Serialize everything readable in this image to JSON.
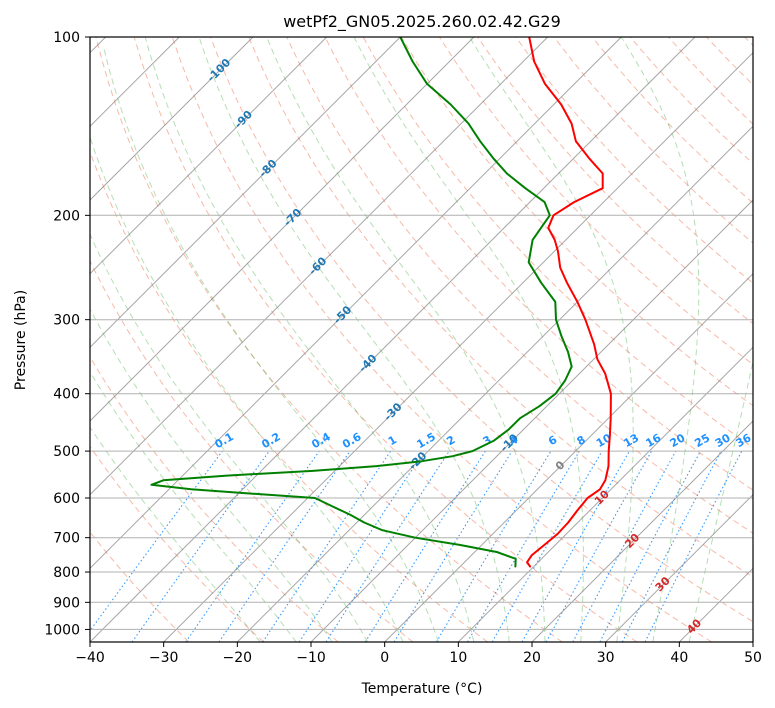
{
  "chart_data": {
    "type": "line",
    "subtype": "skew-t log-p diagram",
    "title": "wetPf2_GN05.2025.260.02.42.G29",
    "xlabel": "Temperature (°C)",
    "ylabel": "Pressure (hPa)",
    "xlim": [
      -40,
      50
    ],
    "ylim": [
      1050,
      100
    ],
    "y_scale": "log",
    "skew_deg": 45,
    "grid": true,
    "x_ticks": [
      -40,
      -30,
      -20,
      -10,
      0,
      10,
      20,
      30,
      40,
      50
    ],
    "x_tick_labels": [
      "−40",
      "−30",
      "−20",
      "−10",
      "0",
      "10",
      "20",
      "30",
      "40",
      "50"
    ],
    "y_ticks": [
      100,
      200,
      300,
      400,
      500,
      600,
      700,
      800,
      900,
      1000
    ],
    "y_tick_labels": [
      "100",
      "200",
      "300",
      "400",
      "500",
      "600",
      "700",
      "800",
      "900",
      "1000"
    ],
    "series": [
      {
        "role": "temperature",
        "color": "#ff0000",
        "points": [
          [
            783,
            9.5
          ],
          [
            770,
            8.5
          ],
          [
            750,
            8.2
          ],
          [
            720,
            8.5
          ],
          [
            690,
            8.8
          ],
          [
            660,
            8.7
          ],
          [
            630,
            8.3
          ],
          [
            600,
            8.0
          ],
          [
            580,
            8.5
          ],
          [
            560,
            8.0
          ],
          [
            530,
            6.5
          ],
          [
            500,
            4.5
          ],
          [
            470,
            2.5
          ],
          [
            440,
            0.3
          ],
          [
            400,
            -3.0
          ],
          [
            370,
            -6.5
          ],
          [
            350,
            -9.5
          ],
          [
            330,
            -12.0
          ],
          [
            300,
            -16.5
          ],
          [
            280,
            -20.0
          ],
          [
            260,
            -24.0
          ],
          [
            245,
            -27.0
          ],
          [
            230,
            -29.5
          ],
          [
            220,
            -31.5
          ],
          [
            210,
            -34.0
          ],
          [
            200,
            -35.0
          ],
          [
            190,
            -34.0
          ],
          [
            180,
            -32.0
          ],
          [
            170,
            -34.0
          ],
          [
            160,
            -38.0
          ],
          [
            150,
            -42.0
          ],
          [
            140,
            -45.0
          ],
          [
            130,
            -49.0
          ],
          [
            120,
            -54.0
          ],
          [
            110,
            -58.5
          ],
          [
            100,
            -62.5
          ]
        ]
      },
      {
        "role": "dewpoint",
        "color": "#008000",
        "points": [
          [
            783,
            7.5
          ],
          [
            760,
            6.5
          ],
          [
            740,
            3.0
          ],
          [
            720,
            -3.0
          ],
          [
            700,
            -10.0
          ],
          [
            680,
            -15.5
          ],
          [
            660,
            -19.0
          ],
          [
            640,
            -22.0
          ],
          [
            620,
            -25.5
          ],
          [
            600,
            -29.0
          ],
          [
            590,
            -38.0
          ],
          [
            580,
            -47.0
          ],
          [
            570,
            -53.0
          ],
          [
            560,
            -52.0
          ],
          [
            550,
            -44.0
          ],
          [
            540,
            -33.0
          ],
          [
            530,
            -25.0
          ],
          [
            520,
            -19.5
          ],
          [
            510,
            -16.0
          ],
          [
            500,
            -14.0
          ],
          [
            480,
            -12.5
          ],
          [
            460,
            -12.0
          ],
          [
            440,
            -12.0
          ],
          [
            420,
            -11.0
          ],
          [
            400,
            -10.5
          ],
          [
            380,
            -11.0
          ],
          [
            360,
            -12.0
          ],
          [
            340,
            -14.5
          ],
          [
            320,
            -17.5
          ],
          [
            300,
            -20.5
          ],
          [
            280,
            -23.0
          ],
          [
            260,
            -27.5
          ],
          [
            240,
            -32.0
          ],
          [
            220,
            -34.5
          ],
          [
            200,
            -35.5
          ],
          [
            190,
            -38.0
          ],
          [
            180,
            -42.5
          ],
          [
            170,
            -47.0
          ],
          [
            160,
            -51.0
          ],
          [
            150,
            -55.0
          ],
          [
            140,
            -59.0
          ],
          [
            130,
            -64.0
          ],
          [
            120,
            -70.0
          ],
          [
            110,
            -75.0
          ],
          [
            100,
            -80.0
          ]
        ]
      }
    ],
    "isotherm_labels": [
      "-100",
      "-90",
      "-80",
      "-70",
      "-60",
      "-50",
      "-40",
      "-30",
      "-20",
      "-10",
      "0",
      "10",
      "20",
      "30",
      "40"
    ],
    "mixing_ratio_labels": [
      "0.1",
      "0.2",
      "0.4",
      "0.6",
      "1",
      "1.5",
      "2",
      "3",
      "4",
      "6",
      "8",
      "10",
      "13",
      "16",
      "20",
      "25",
      "30",
      "36"
    ],
    "mixing_ratio_values": [
      0.1,
      0.2,
      0.4,
      0.6,
      1,
      1.5,
      2,
      3,
      4,
      6,
      8,
      10,
      13,
      16,
      20,
      25,
      30,
      36
    ],
    "dry_adiabat_thetas_c": [
      -30,
      -20,
      -10,
      0,
      10,
      20,
      30,
      40,
      50,
      60,
      70,
      80,
      90,
      100,
      110,
      120,
      130,
      140,
      150,
      160,
      170,
      180,
      190,
      200
    ],
    "moist_adiabat_start_temps_c": [
      -20,
      -15,
      -10,
      -5,
      0,
      5,
      10,
      15,
      20,
      25,
      30,
      35,
      40
    ],
    "colors": {
      "isotherm": "#808080",
      "isotherm_label_cold": "#1f77b4",
      "isotherm_label_zero": "#808080",
      "isotherm_label_warm": "#d62728",
      "mixing_ratio": "#1e90ff",
      "dry_adiabat": "#f08060",
      "moist_adiabat": "#2ca02c",
      "isobar": "#b0b0b0",
      "special_adiabat": "#d2b48c"
    }
  }
}
